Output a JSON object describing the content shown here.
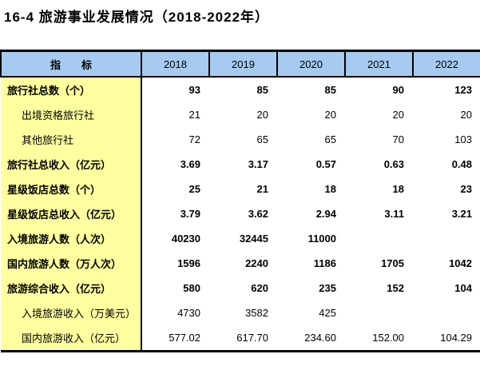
{
  "page": {
    "title": "16-4 旅游事业发展情况（2018-2022年）"
  },
  "colors": {
    "header_bg": "#a6caf0",
    "indicator_bg": "#ffffa0",
    "border": "#000000",
    "text": "#000000",
    "page_bg": "#ffffff"
  },
  "table": {
    "header": {
      "indicator": "指　　标",
      "years": [
        "2018",
        "2019",
        "2020",
        "2021",
        "2022"
      ]
    },
    "rows": [
      {
        "label": "旅行社总数（个）",
        "bold": true,
        "indent": false,
        "values": [
          "93",
          "85",
          "85",
          "90",
          "123"
        ]
      },
      {
        "label": "出境资格旅行社",
        "bold": false,
        "indent": true,
        "values": [
          "21",
          "20",
          "20",
          "20",
          "20"
        ]
      },
      {
        "label": "其他旅行社",
        "bold": false,
        "indent": true,
        "values": [
          "72",
          "65",
          "65",
          "70",
          "103"
        ]
      },
      {
        "label": "旅行社总收入（亿元）",
        "bold": true,
        "indent": false,
        "values": [
          "3.69",
          "3.17",
          "0.57",
          "0.63",
          "0.48"
        ]
      },
      {
        "label": "星级饭店总数（个）",
        "bold": true,
        "indent": false,
        "values": [
          "25",
          "21",
          "18",
          "18",
          "23"
        ]
      },
      {
        "label": "星级饭店总收入（亿元）",
        "bold": true,
        "indent": false,
        "values": [
          "3.79",
          "3.62",
          "2.94",
          "3.11",
          "3.21"
        ]
      },
      {
        "label": "入境旅游人数（人次）",
        "bold": true,
        "indent": false,
        "values": [
          "40230",
          "32445",
          "11000",
          "",
          ""
        ]
      },
      {
        "label": "国内旅游人数（万人次）",
        "bold": true,
        "indent": false,
        "values": [
          "1596",
          "2240",
          "1186",
          "1705",
          "1042"
        ]
      },
      {
        "label": "旅游综合收入（亿元）",
        "bold": true,
        "indent": false,
        "values": [
          "580",
          "620",
          "235",
          "152",
          "104"
        ]
      },
      {
        "label": "入境旅游收入（万美元）",
        "bold": false,
        "indent": true,
        "values": [
          "4730",
          "3582",
          "425",
          "",
          ""
        ]
      },
      {
        "label": "国内旅游收入（亿元）",
        "bold": false,
        "indent": true,
        "values": [
          "577.02",
          "617.70",
          "234.60",
          "152.00",
          "104.29"
        ]
      }
    ]
  }
}
